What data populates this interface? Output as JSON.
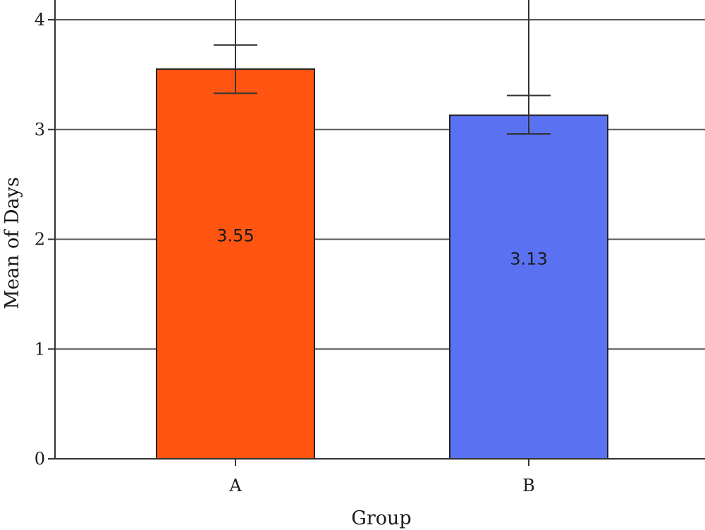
{
  "chart_data": {
    "type": "bar",
    "title": "",
    "xlabel": "Group",
    "ylabel": "Mean of Days",
    "categories": [
      "A",
      "B"
    ],
    "values": [
      3.55,
      3.13
    ],
    "value_labels": [
      "3.55",
      "3.13"
    ],
    "error_bars": [
      {
        "lower": 3.33,
        "upper": 3.77
      },
      {
        "lower": 2.96,
        "upper": 3.31
      }
    ],
    "colors": [
      "#ff5511",
      "#5a72f2"
    ],
    "ylim": [
      0,
      4
    ],
    "yticks": [
      0,
      1,
      2,
      3,
      4
    ],
    "ytick_labels": [
      "0",
      "1",
      "2",
      "3",
      "4"
    ],
    "grid": true,
    "legend": "none"
  }
}
